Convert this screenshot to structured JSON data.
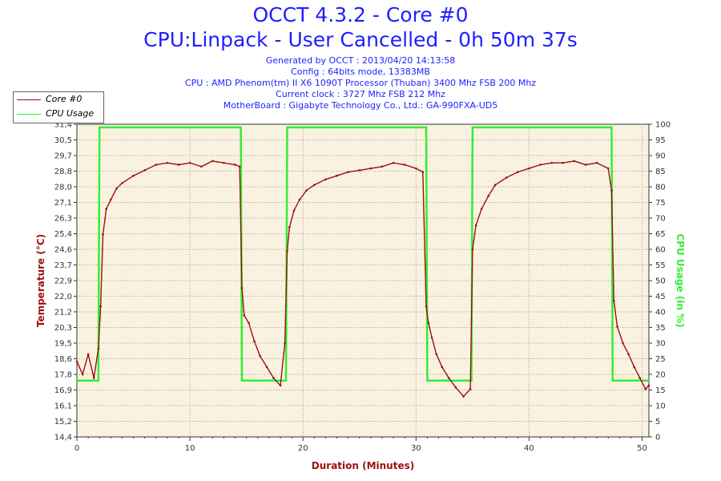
{
  "header": {
    "title": "OCCT 4.3.2 - Core #0",
    "subtitle": "CPU:Linpack - User Cancelled - 0h 50m 37s",
    "info_lines": [
      "Generated by OCCT : 2013/04/20 14:13:58",
      "Config : 64bits mode, 13383MB",
      "CPU : AMD Phenom(tm) II X6 1090T Processor (Thuban) 3400 Mhz FSB 200 Mhz",
      "Current clock : 3727 Mhz FSB 212 Mhz",
      "MotherBoard : Gigabyte Technology Co., Ltd.: GA-990FXA-UD5"
    ]
  },
  "colors": {
    "background": "#faf2e0",
    "grid": "#9a9a9a",
    "core": "#9b1010",
    "usage": "#33ee33",
    "title": "#1f1fff",
    "axis_label_left": "#9b1010",
    "axis_label_bottom": "#9b1010",
    "axis_label_right": "#33ee33"
  },
  "chart_data": {
    "type": "line",
    "xlabel": "Duration (Minutes)",
    "ylabel": "Temperature (°C)",
    "y2label": "CPU Usage (in %)",
    "xlim": [
      0,
      50.6
    ],
    "ylim": [
      14.4,
      31.4
    ],
    "y2lim": [
      0,
      100
    ],
    "x_ticks": [
      "0",
      "10",
      "20",
      "30",
      "40",
      "50"
    ],
    "x_tick_values": [
      0,
      10,
      20,
      30,
      40,
      50
    ],
    "y_ticks": [
      "14,4",
      "15,2",
      "16,1",
      "16,9",
      "17,8",
      "18,6",
      "19,5",
      "20,3",
      "21,2",
      "22,0",
      "22,9",
      "23,7",
      "24,6",
      "25,4",
      "26,3",
      "27,1",
      "28,0",
      "28,8",
      "29,7",
      "30,5",
      "31,4"
    ],
    "y2_ticks": [
      "0",
      "5",
      "10",
      "15",
      "20",
      "25",
      "30",
      "35",
      "40",
      "45",
      "50",
      "55",
      "60",
      "65",
      "70",
      "75",
      "80",
      "85",
      "90",
      "95",
      "100"
    ],
    "grid": true,
    "legend_position": "top-left",
    "series": [
      {
        "name": "Core #0",
        "axis": "left",
        "x": [
          0,
          0.5,
          1.0,
          1.5,
          1.9,
          2.1,
          2.3,
          2.6,
          3.0,
          3.5,
          4.0,
          5.0,
          6.0,
          7.0,
          8.0,
          9.0,
          10.0,
          11.0,
          12.0,
          13.0,
          14.0,
          14.4,
          14.6,
          14.8,
          15.2,
          15.7,
          16.2,
          16.8,
          17.4,
          18.0,
          18.4,
          18.6,
          18.8,
          19.2,
          19.7,
          20.3,
          21.0,
          22.0,
          23.0,
          24.0,
          25.0,
          26.0,
          27.0,
          28.0,
          29.0,
          30.0,
          30.6,
          30.9,
          31.1,
          31.4,
          31.8,
          32.3,
          32.9,
          33.5,
          34.2,
          34.8,
          35.0,
          35.3,
          35.8,
          36.4,
          37.0,
          38.0,
          39.0,
          40.0,
          41.0,
          42.0,
          43.0,
          44.0,
          45.0,
          46.0,
          47.0,
          47.3,
          47.5,
          47.8,
          48.3,
          48.8,
          49.3,
          49.8,
          50.3,
          50.6
        ],
        "y": [
          18.5,
          17.8,
          18.9,
          17.6,
          19.2,
          21.5,
          25.4,
          26.8,
          27.3,
          27.9,
          28.2,
          28.6,
          28.9,
          29.2,
          29.3,
          29.2,
          29.3,
          29.1,
          29.4,
          29.3,
          29.2,
          29.1,
          22.5,
          21.0,
          20.6,
          19.6,
          18.8,
          18.2,
          17.6,
          17.2,
          19.5,
          24.5,
          25.8,
          26.7,
          27.3,
          27.8,
          28.1,
          28.4,
          28.6,
          28.8,
          28.9,
          29.0,
          29.1,
          29.3,
          29.2,
          29.0,
          28.8,
          21.5,
          20.6,
          19.8,
          18.9,
          18.2,
          17.6,
          17.1,
          16.6,
          17.0,
          24.6,
          25.9,
          26.8,
          27.5,
          28.1,
          28.5,
          28.8,
          29.0,
          29.2,
          29.3,
          29.3,
          29.4,
          29.2,
          29.3,
          29.0,
          27.8,
          21.8,
          20.4,
          19.5,
          18.9,
          18.2,
          17.6,
          17.0,
          17.2
        ]
      },
      {
        "name": "CPU Usage",
        "axis": "right",
        "x": [
          0,
          1.9,
          2.0,
          14.5,
          14.6,
          18.5,
          18.6,
          30.9,
          31.0,
          34.9,
          35.0,
          47.3,
          47.4,
          50.6
        ],
        "y": [
          18,
          18,
          99,
          99,
          18,
          18,
          99,
          99,
          18,
          18,
          99,
          99,
          18,
          18
        ]
      }
    ]
  }
}
